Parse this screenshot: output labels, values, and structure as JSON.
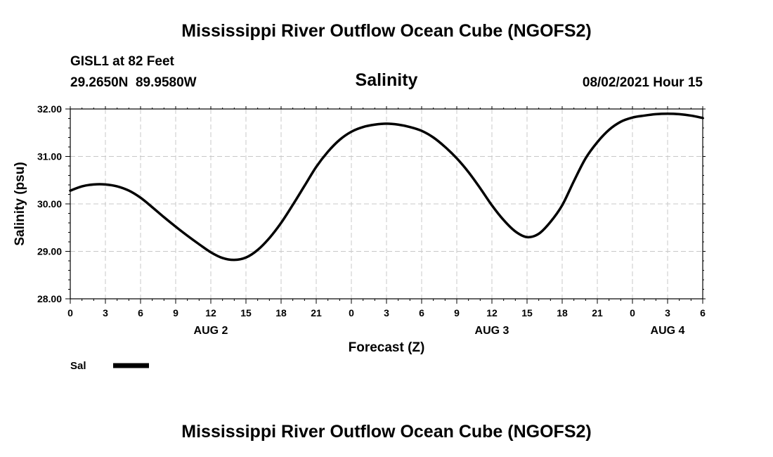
{
  "header": {
    "title": "Mississippi River Outflow Ocean Cube (NGOFS2)",
    "station": "GISL1 at 82 Feet",
    "coords": "29.2650N  89.9580W",
    "variable": "Salinity",
    "datetime": "08/02/2021 Hour 15"
  },
  "footer": {
    "title": "Mississippi River Outflow Ocean Cube (NGOFS2)"
  },
  "legend": {
    "label": "Sal"
  },
  "colors": {
    "line": "#000000",
    "grid": "#c8c8c8",
    "axis": "#000000"
  },
  "chart_data": {
    "type": "line",
    "title": "Salinity",
    "xlabel": "Forecast (Z)",
    "ylabel": "Salinity (psu)",
    "ylim": [
      28.0,
      32.0
    ],
    "yticks": [
      28.0,
      29.0,
      30.0,
      31.0,
      32.0
    ],
    "ytick_labels": [
      "28.00",
      "29.00",
      "30.00",
      "31.00",
      "32.00"
    ],
    "xlim_hours": [
      0,
      54
    ],
    "xtick_hours": [
      0,
      3,
      6,
      9,
      12,
      15,
      18,
      21,
      24,
      27,
      30,
      33,
      36,
      39,
      42,
      45,
      48,
      51,
      54
    ],
    "xtick_labels": [
      "0",
      "3",
      "6",
      "9",
      "12",
      "15",
      "18",
      "21",
      "0",
      "3",
      "6",
      "9",
      "12",
      "15",
      "18",
      "21",
      "0",
      "3",
      "6"
    ],
    "day_labels": [
      {
        "hour": 12,
        "label": "AUG 2"
      },
      {
        "hour": 36,
        "label": "AUG 3"
      },
      {
        "hour": 51,
        "label": "AUG 4"
      }
    ],
    "grid": true,
    "legend": "bottom-left",
    "series": [
      {
        "name": "Sal",
        "x_hours": [
          0,
          1,
          2,
          3,
          4,
          5,
          6,
          7,
          8,
          9,
          10,
          11,
          12,
          13,
          14,
          15,
          16,
          17,
          18,
          19,
          20,
          21,
          22,
          23,
          24,
          25,
          26,
          27,
          28,
          29,
          30,
          31,
          32,
          33,
          34,
          35,
          36,
          37,
          38,
          39,
          40,
          41,
          42,
          43,
          44,
          45,
          46,
          47,
          48,
          49,
          50,
          51,
          52,
          53,
          54
        ],
        "values": [
          30.28,
          30.37,
          30.41,
          30.41,
          30.37,
          30.28,
          30.13,
          29.93,
          29.72,
          29.52,
          29.33,
          29.15,
          28.98,
          28.86,
          28.82,
          28.87,
          29.03,
          29.28,
          29.6,
          29.98,
          30.38,
          30.78,
          31.1,
          31.35,
          31.52,
          31.62,
          31.67,
          31.69,
          31.67,
          31.62,
          31.54,
          31.4,
          31.2,
          30.96,
          30.67,
          30.33,
          29.97,
          29.66,
          29.42,
          29.3,
          29.37,
          29.62,
          29.97,
          30.48,
          30.96,
          31.3,
          31.56,
          31.73,
          31.82,
          31.86,
          31.89,
          31.9,
          31.89,
          31.86,
          31.81
        ]
      }
    ]
  }
}
